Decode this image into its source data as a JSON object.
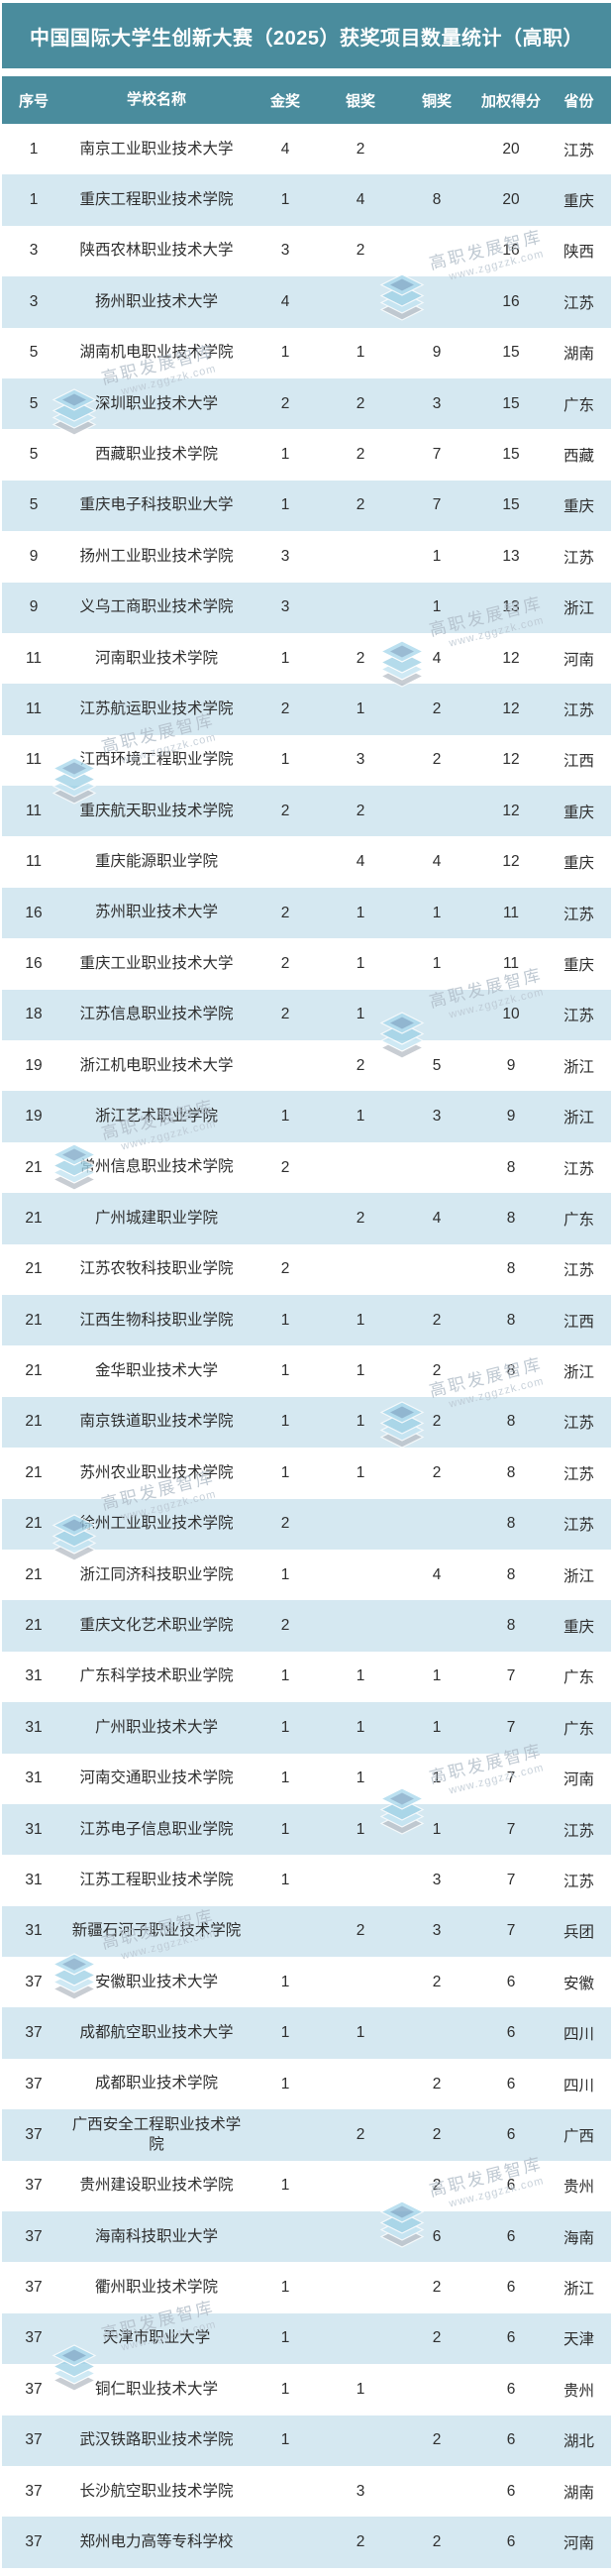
{
  "chart_data": {
    "type": "table",
    "title": "中国国际大学生创新大赛（2025）获奖项目数量统计（高职）",
    "columns": [
      "序号",
      "学校名称",
      "金奖",
      "银奖",
      "铜奖",
      "加权得分",
      "省份"
    ],
    "rows": [
      [
        "1",
        "南京工业职业技术大学",
        "4",
        "2",
        "",
        "20",
        "江苏"
      ],
      [
        "1",
        "重庆工程职业技术学院",
        "1",
        "4",
        "8",
        "20",
        "重庆"
      ],
      [
        "3",
        "陕西农林职业技术大学",
        "3",
        "2",
        "",
        "16",
        "陕西"
      ],
      [
        "3",
        "扬州职业技术大学",
        "4",
        "",
        "",
        "16",
        "江苏"
      ],
      [
        "5",
        "湖南机电职业技术学院",
        "1",
        "1",
        "9",
        "15",
        "湖南"
      ],
      [
        "5",
        "深圳职业技术大学",
        "2",
        "2",
        "3",
        "15",
        "广东"
      ],
      [
        "5",
        "西藏职业技术学院",
        "1",
        "2",
        "7",
        "15",
        "西藏"
      ],
      [
        "5",
        "重庆电子科技职业大学",
        "1",
        "2",
        "7",
        "15",
        "重庆"
      ],
      [
        "9",
        "扬州工业职业技术学院",
        "3",
        "",
        "1",
        "13",
        "江苏"
      ],
      [
        "9",
        "义乌工商职业技术学院",
        "3",
        "",
        "1",
        "13",
        "浙江"
      ],
      [
        "11",
        "河南职业技术学院",
        "1",
        "2",
        "4",
        "12",
        "河南"
      ],
      [
        "11",
        "江苏航运职业技术学院",
        "2",
        "1",
        "2",
        "12",
        "江苏"
      ],
      [
        "11",
        "江西环境工程职业学院",
        "1",
        "3",
        "2",
        "12",
        "江西"
      ],
      [
        "11",
        "重庆航天职业技术学院",
        "2",
        "2",
        "",
        "12",
        "重庆"
      ],
      [
        "11",
        "重庆能源职业学院",
        "",
        "4",
        "4",
        "12",
        "重庆"
      ],
      [
        "16",
        "苏州职业技术大学",
        "2",
        "1",
        "1",
        "11",
        "江苏"
      ],
      [
        "16",
        "重庆工业职业技术大学",
        "2",
        "1",
        "1",
        "11",
        "重庆"
      ],
      [
        "18",
        "江苏信息职业技术学院",
        "2",
        "1",
        "",
        "10",
        "江苏"
      ],
      [
        "19",
        "浙江机电职业技术大学",
        "",
        "2",
        "5",
        "9",
        "浙江"
      ],
      [
        "19",
        "浙江艺术职业学院",
        "1",
        "1",
        "3",
        "9",
        "浙江"
      ],
      [
        "21",
        "常州信息职业技术学院",
        "2",
        "",
        "",
        "8",
        "江苏"
      ],
      [
        "21",
        "广州城建职业学院",
        "",
        "2",
        "4",
        "8",
        "广东"
      ],
      [
        "21",
        "江苏农牧科技职业学院",
        "2",
        "",
        "",
        "8",
        "江苏"
      ],
      [
        "21",
        "江西生物科技职业学院",
        "1",
        "1",
        "2",
        "8",
        "江西"
      ],
      [
        "21",
        "金华职业技术大学",
        "1",
        "1",
        "2",
        "8",
        "浙江"
      ],
      [
        "21",
        "南京铁道职业技术学院",
        "1",
        "1",
        "2",
        "8",
        "江苏"
      ],
      [
        "21",
        "苏州农业职业技术学院",
        "1",
        "1",
        "2",
        "8",
        "江苏"
      ],
      [
        "21",
        "徐州工业职业技术学院",
        "2",
        "",
        "",
        "8",
        "江苏"
      ],
      [
        "21",
        "浙江同济科技职业学院",
        "1",
        "",
        "4",
        "8",
        "浙江"
      ],
      [
        "21",
        "重庆文化艺术职业学院",
        "2",
        "",
        "",
        "8",
        "重庆"
      ],
      [
        "31",
        "广东科学技术职业学院",
        "1",
        "1",
        "1",
        "7",
        "广东"
      ],
      [
        "31",
        "广州职业技术大学",
        "1",
        "1",
        "1",
        "7",
        "广东"
      ],
      [
        "31",
        "河南交通职业技术学院",
        "1",
        "1",
        "1",
        "7",
        "河南"
      ],
      [
        "31",
        "江苏电子信息职业学院",
        "1",
        "1",
        "1",
        "7",
        "江苏"
      ],
      [
        "31",
        "江苏工程职业技术学院",
        "1",
        "",
        "3",
        "7",
        "江苏"
      ],
      [
        "31",
        "新疆石河子职业技术学院",
        "",
        "2",
        "3",
        "7",
        "兵团"
      ],
      [
        "37",
        "安徽职业技术大学",
        "1",
        "",
        "2",
        "6",
        "安徽"
      ],
      [
        "37",
        "成都航空职业技术大学",
        "1",
        "1",
        "",
        "6",
        "四川"
      ],
      [
        "37",
        "成都职业技术学院",
        "1",
        "",
        "2",
        "6",
        "四川"
      ],
      [
        "37",
        "广西安全工程职业技术学院",
        "",
        "2",
        "2",
        "6",
        "广西"
      ],
      [
        "37",
        "贵州建设职业技术学院",
        "1",
        "",
        "2",
        "6",
        "贵州"
      ],
      [
        "37",
        "海南科技职业大学",
        "",
        "",
        "6",
        "6",
        "海南"
      ],
      [
        "37",
        "衢州职业技术学院",
        "1",
        "",
        "2",
        "6",
        "浙江"
      ],
      [
        "37",
        "天津市职业大学",
        "1",
        "",
        "2",
        "6",
        "天津"
      ],
      [
        "37",
        "铜仁职业技术大学",
        "1",
        "1",
        "",
        "6",
        "贵州"
      ],
      [
        "37",
        "武汉铁路职业技术学院",
        "1",
        "",
        "2",
        "6",
        "湖北"
      ],
      [
        "37",
        "长沙航空职业技术学院",
        "",
        "3",
        "",
        "6",
        "湖南"
      ],
      [
        "37",
        "郑州电力高等专科学校",
        "",
        "2",
        "2",
        "6",
        "河南"
      ]
    ]
  },
  "watermark": {
    "brand": "高职发展智库",
    "url": "www.zggzzk.com",
    "icon": "layers-stack-icon"
  },
  "colors": {
    "header_teal": "#4a8c9d",
    "row_alt_blue": "#d5e8f1",
    "body_text": "#2e2e2e",
    "watermark_gray": "#aebac6"
  }
}
